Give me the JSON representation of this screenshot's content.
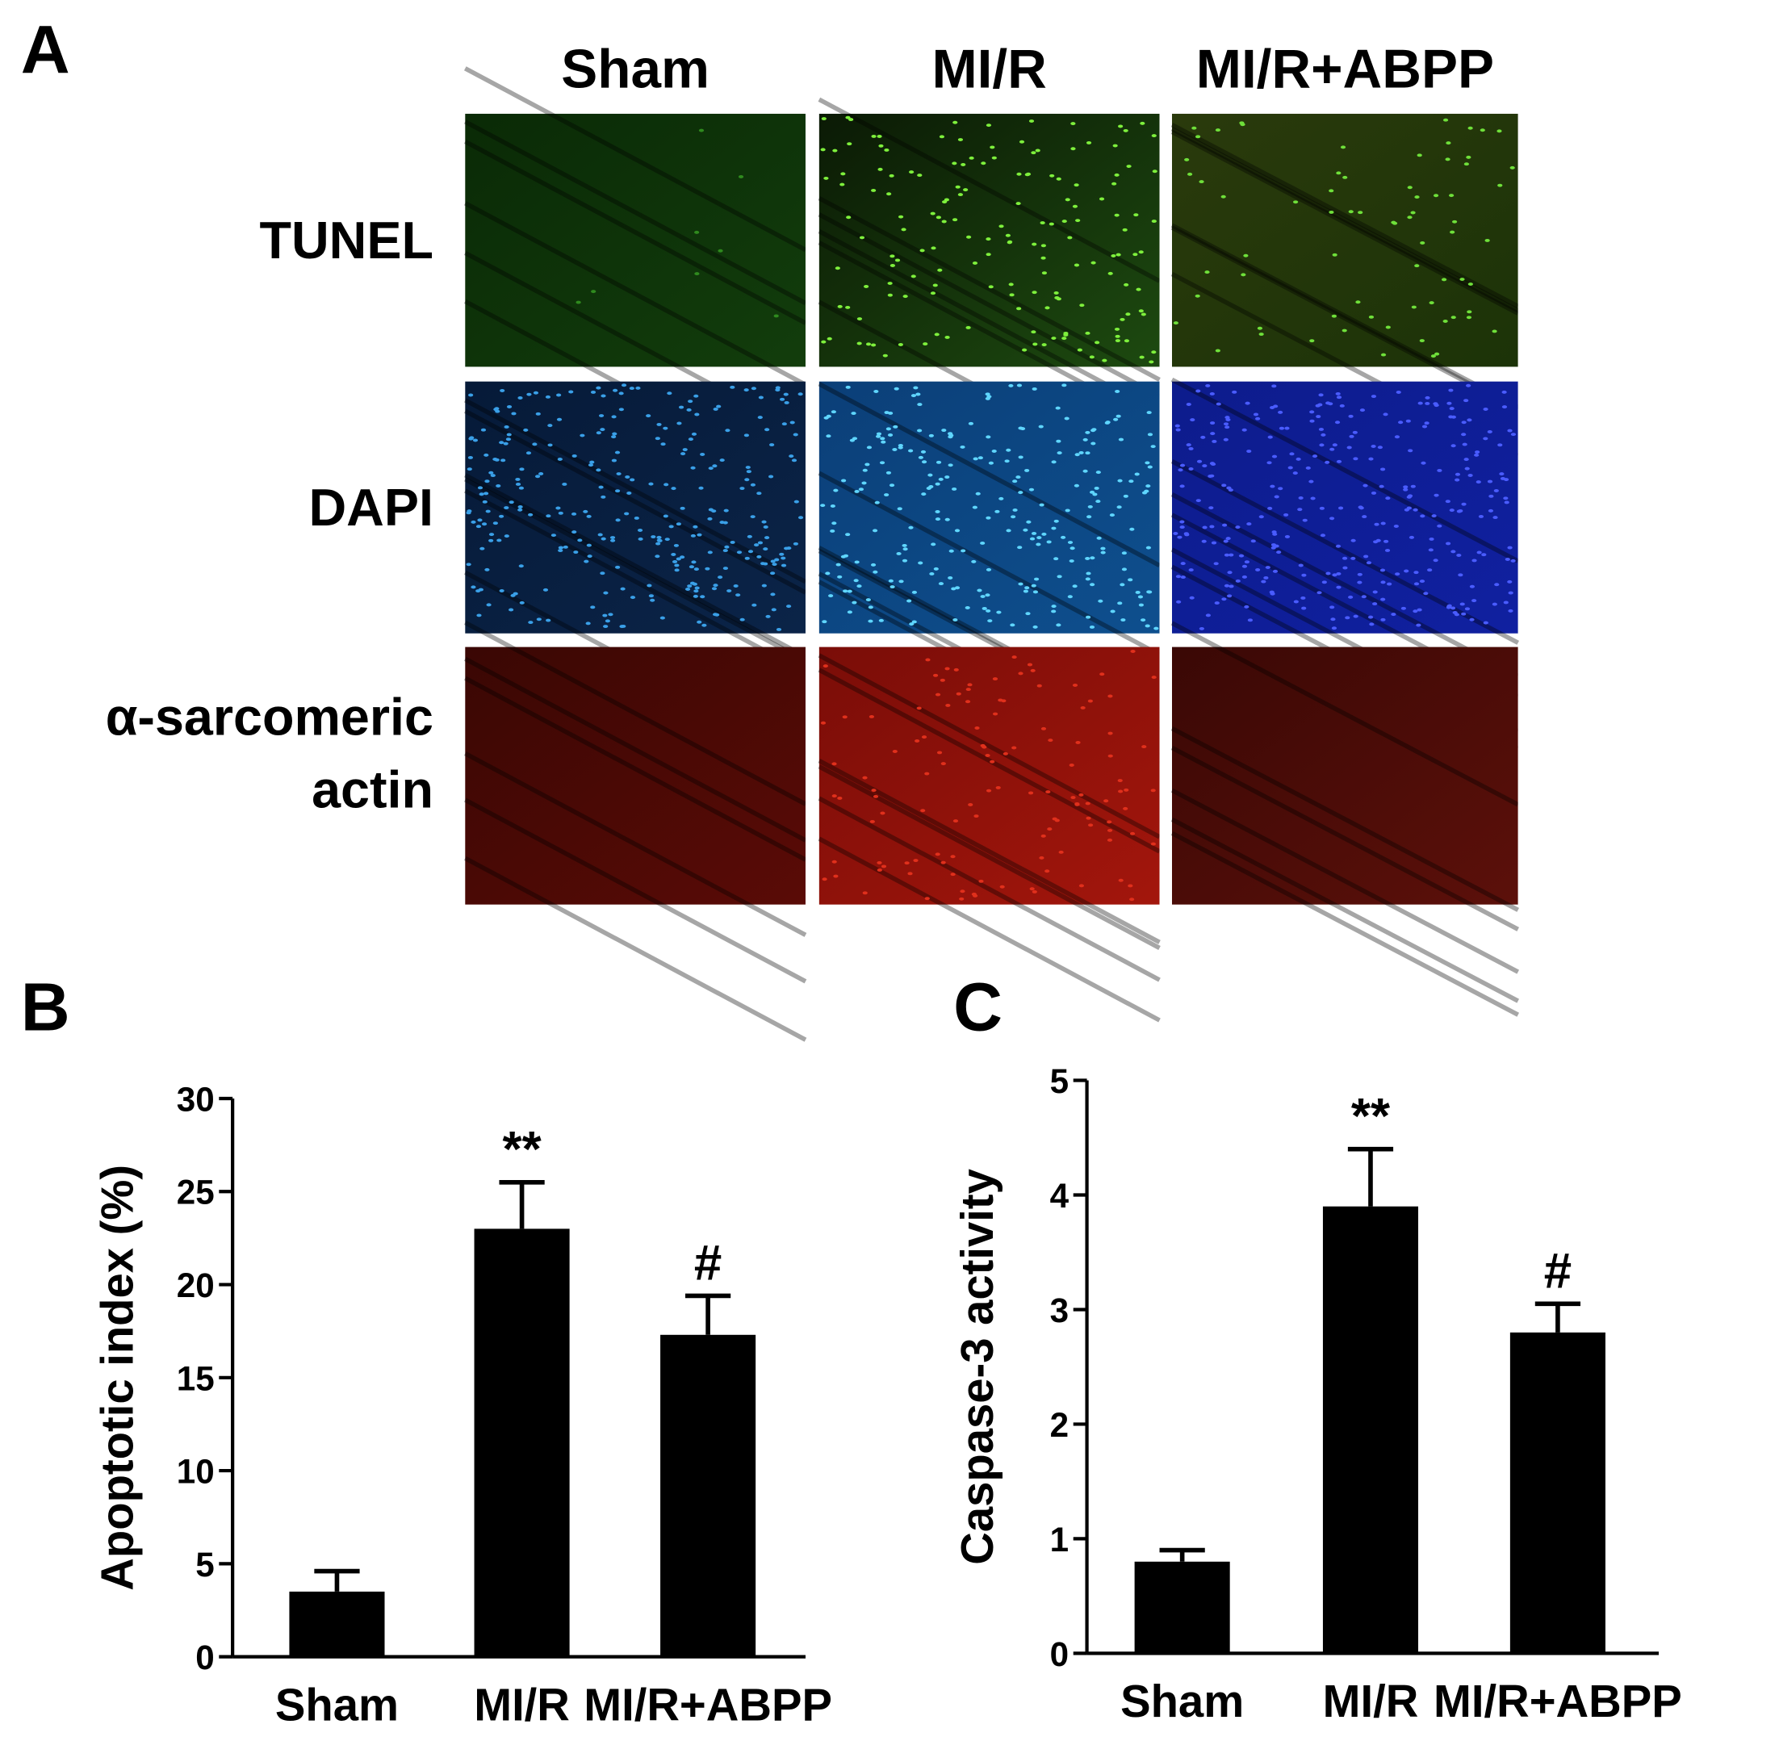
{
  "panel_a": {
    "label": "A",
    "columns": [
      "Sham",
      "MI/R",
      "MI/R+ABPP"
    ],
    "row_labels": [
      [
        "TUNEL"
      ],
      [
        "DAPI"
      ],
      [
        "α-sarcomeric",
        "actin"
      ]
    ]
  },
  "chart_data": [
    {
      "type": "bar",
      "panel": "B",
      "y_label": "Apoptotic index (%)",
      "categories": [
        "Sham",
        "MI/R",
        "MI/R+ABPP"
      ],
      "values": [
        3.5,
        23,
        17.3
      ],
      "errors": [
        1.1,
        2.5,
        2.1
      ],
      "color": "#000000",
      "ylim": [
        0,
        30
      ],
      "yticks": [
        0,
        5,
        10,
        15,
        20,
        25,
        30
      ],
      "annotations": [
        null,
        "**",
        "#"
      ]
    },
    {
      "type": "bar",
      "panel": "C",
      "y_label": "Caspase-3 activity",
      "categories": [
        "Sham",
        "MI/R",
        "MI/R+ABPP"
      ],
      "values": [
        0.8,
        3.9,
        2.8
      ],
      "errors": [
        0.1,
        0.5,
        0.25
      ],
      "color": "#000000",
      "ylim": [
        0,
        5
      ],
      "yticks": [
        0,
        1,
        2,
        3,
        4,
        5
      ],
      "annotations": [
        null,
        "**",
        "#"
      ]
    }
  ]
}
